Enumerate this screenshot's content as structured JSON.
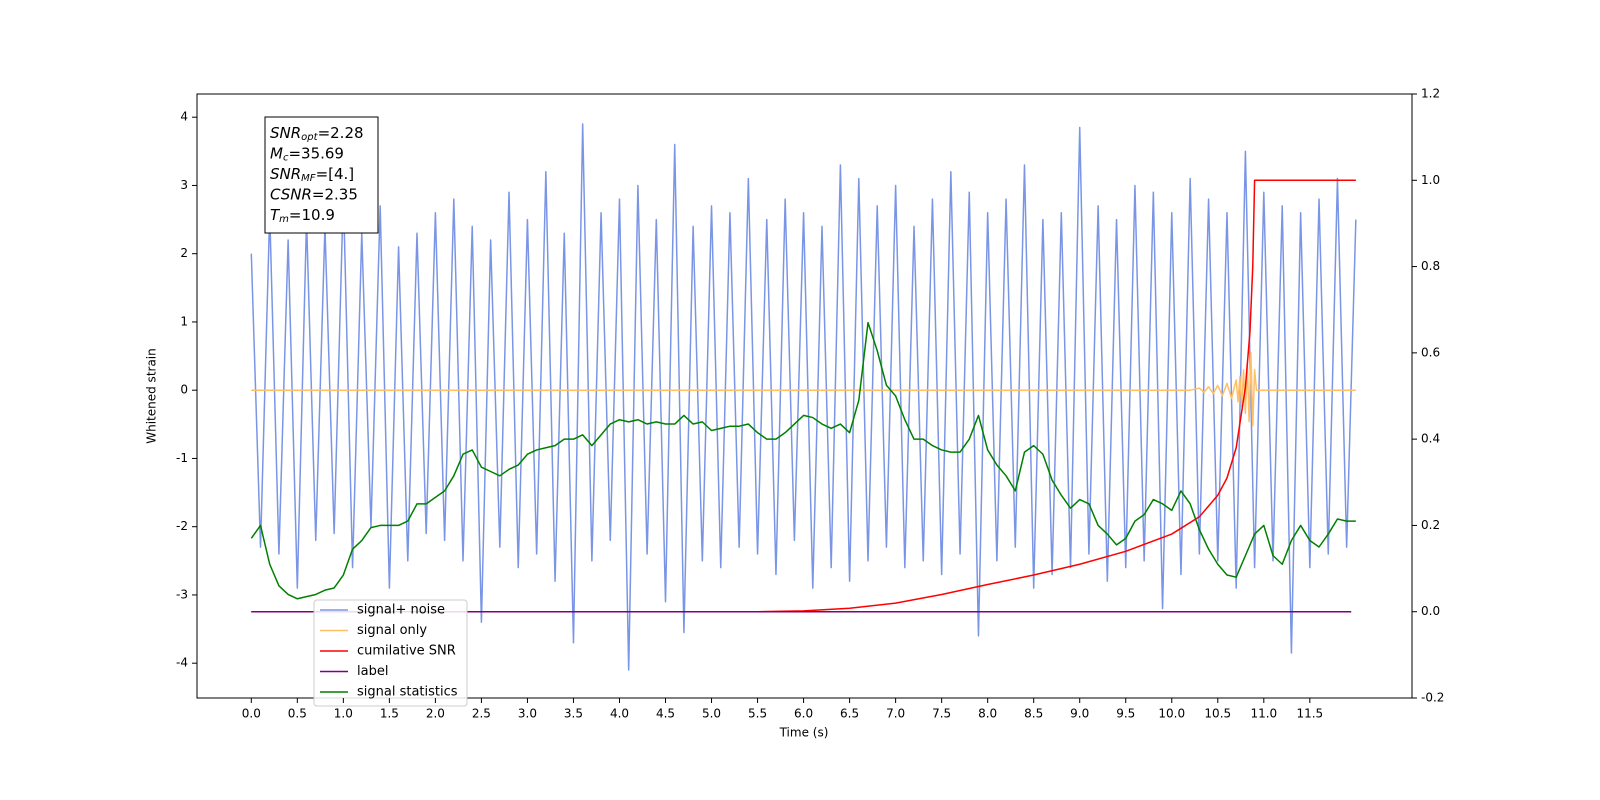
{
  "chart_data": {
    "type": "line",
    "xlabel": "Time (s)",
    "ylabel": "Whitened strain",
    "xlim": [
      -0.59,
      12.61
    ],
    "ylim": [
      -4.51,
      4.34
    ],
    "y2lim": [
      -0.2,
      1.2
    ],
    "xticks": [
      {
        "value": 0,
        "label": "0.0"
      },
      0.5,
      {
        "value": 1,
        "label": "1.0"
      },
      1.5,
      {
        "value": 2,
        "label": "2.0"
      },
      2.5,
      {
        "value": 3,
        "label": "3.0"
      },
      3.5,
      {
        "value": 4,
        "label": "4.0"
      },
      4.5,
      {
        "value": 5,
        "label": "5.0"
      },
      5.5,
      {
        "value": 6,
        "label": "6.0"
      },
      6.5,
      {
        "value": 7,
        "label": "7.0"
      },
      7.5,
      {
        "value": 8,
        "label": "8.0"
      },
      8.5,
      {
        "value": 9,
        "label": "9.0"
      },
      9.5,
      {
        "value": 10,
        "label": "10.0"
      },
      10.5,
      {
        "value": 11,
        "label": "11.0"
      },
      11.5
    ],
    "yticks": [
      -4,
      -3,
      -2,
      -1,
      0,
      1,
      2,
      3,
      4
    ],
    "y2ticks": [
      -0.2,
      {
        "value": 0,
        "label": "0.0"
      },
      0.2,
      0.4,
      0.6,
      0.8,
      {
        "value": 1,
        "label": "1.0"
      },
      1.2
    ],
    "annotations": [
      {
        "symbol": "SNR",
        "subscript": "opt",
        "text": "=2.28"
      },
      {
        "symbol": "M",
        "subscript": "c",
        "text": "=35.69"
      },
      {
        "symbol": "SNR",
        "subscript": "MF",
        "text": "=[4.]"
      },
      {
        "symbol": "CSNR",
        "text": "=2.35"
      },
      {
        "symbol": "T",
        "subscript": "m",
        "text": "=10.9"
      }
    ],
    "x": [
      0,
      0.1,
      0.2,
      0.3,
      0.4,
      0.5,
      0.6,
      0.7,
      0.8,
      0.9,
      1,
      1.1,
      1.2,
      1.3,
      1.4,
      1.5,
      1.6,
      1.7,
      1.8,
      1.9,
      2,
      2.1,
      2.2,
      2.3,
      2.4,
      2.5,
      2.6,
      2.7,
      2.8,
      2.9,
      3,
      3.1,
      3.2,
      3.3,
      3.4,
      3.5,
      3.6,
      3.7,
      3.8,
      3.9,
      4,
      4.1,
      4.2,
      4.3,
      4.4,
      4.5,
      4.6,
      4.7,
      4.8,
      4.9,
      5,
      5.1,
      5.2,
      5.3,
      5.4,
      5.5,
      5.6,
      5.7,
      5.8,
      5.9,
      6,
      6.1,
      6.2,
      6.3,
      6.4,
      6.5,
      6.6,
      6.7,
      6.8,
      6.9,
      7,
      7.1,
      7.2,
      7.3,
      7.4,
      7.5,
      7.6,
      7.7,
      7.8,
      7.9,
      8,
      8.1,
      8.2,
      8.3,
      8.4,
      8.5,
      8.6,
      8.7,
      8.8,
      8.9,
      9,
      9.1,
      9.2,
      9.3,
      9.4,
      9.5,
      9.6,
      9.7,
      9.8,
      9.9,
      10,
      10.1,
      10.2,
      10.3,
      10.4,
      10.5,
      10.6,
      10.7,
      10.8,
      10.9,
      11,
      11.1,
      11.2,
      11.3,
      11.4,
      11.5,
      11.6,
      11.7,
      11.8,
      11.9,
      12
    ],
    "series": [
      {
        "name": "signal+ noise",
        "color": "#7a95e6",
        "values": [
          2.0,
          -2.3,
          2.6,
          -2.4,
          2.2,
          -2.9,
          2.5,
          -2.2,
          2.4,
          -2.1,
          2.9,
          -2.6,
          2.3,
          -2.0,
          2.7,
          -2.9,
          2.1,
          -2.5,
          2.3,
          -2.1,
          2.6,
          -2.2,
          2.8,
          -2.5,
          2.4,
          -3.4,
          2.2,
          -2.3,
          2.9,
          -2.6,
          2.5,
          -2.4,
          3.2,
          -2.8,
          2.3,
          -3.7,
          3.9,
          -2.5,
          2.6,
          -2.2,
          2.8,
          -4.1,
          3.0,
          -2.4,
          2.5,
          -3.1,
          3.6,
          -3.55,
          2.4,
          -2.5,
          2.7,
          -2.6,
          2.6,
          -2.3,
          3.1,
          -2.4,
          2.5,
          -2.7,
          2.8,
          -2.2,
          2.6,
          -2.9,
          2.4,
          -2.6,
          3.3,
          -2.8,
          3.1,
          -2.5,
          2.7,
          -2.3,
          3.0,
          -2.6,
          2.4,
          -2.5,
          2.8,
          -2.7,
          3.2,
          -2.4,
          2.9,
          -3.6,
          2.6,
          -2.5,
          2.8,
          -2.3,
          3.3,
          -2.9,
          2.5,
          -2.7,
          2.6,
          -2.6,
          3.85,
          -2.4,
          2.7,
          -2.8,
          2.5,
          -2.6,
          3.0,
          -2.5,
          2.9,
          -3.2,
          2.6,
          -2.7,
          3.1,
          -2.4,
          2.8,
          -2.5,
          2.6,
          -2.9,
          3.5,
          -2.6,
          2.9,
          -2.5,
          2.7,
          -3.85,
          2.6,
          -2.6,
          2.8,
          -2.4,
          3.1,
          -2.3,
          2.5
        ]
      },
      {
        "name": "signal only",
        "color": "#ffbf66",
        "x": [
          0,
          10.2,
          10.3,
          10.35,
          10.4,
          10.45,
          10.5,
          10.55,
          10.6,
          10.65,
          10.7,
          10.72,
          10.74,
          10.76,
          10.78,
          10.8,
          10.82,
          10.84,
          10.86,
          10.88,
          10.9,
          10.92,
          12.0
        ],
        "values": [
          0,
          0,
          0.03,
          -0.03,
          0.05,
          -0.05,
          0.07,
          -0.08,
          0.1,
          -0.12,
          0.15,
          -0.17,
          0.2,
          -0.24,
          0.3,
          -0.34,
          0.4,
          -0.46,
          0.55,
          -0.52,
          0.3,
          0,
          0
        ]
      },
      {
        "name": "cumilative SNR",
        "color": "#ff0000",
        "axis": "y2",
        "x": [
          0,
          5.5,
          6.0,
          6.5,
          7.0,
          7.5,
          8.0,
          8.5,
          9.0,
          9.5,
          10.0,
          10.3,
          10.5,
          10.6,
          10.7,
          10.8,
          10.85,
          10.88,
          10.9,
          12.0
        ],
        "values": [
          0,
          0,
          0.002,
          0.008,
          0.02,
          0.04,
          0.063,
          0.085,
          0.11,
          0.14,
          0.18,
          0.22,
          0.27,
          0.31,
          0.38,
          0.52,
          0.65,
          0.8,
          1.0,
          1.0
        ]
      },
      {
        "name": "label",
        "color": "#800080",
        "axis": "y2",
        "x": [
          0,
          11.95
        ],
        "values": [
          0,
          0
        ]
      },
      {
        "name": "signal statistics",
        "color": "#008000",
        "axis": "y2",
        "values": [
          0.17,
          0.2,
          0.11,
          0.06,
          0.04,
          0.03,
          0.035,
          0.04,
          0.05,
          0.055,
          0.085,
          0.145,
          0.165,
          0.195,
          0.2,
          0.2,
          0.2,
          0.21,
          0.25,
          0.25,
          0.265,
          0.28,
          0.315,
          0.365,
          0.375,
          0.335,
          0.325,
          0.315,
          0.33,
          0.34,
          0.365,
          0.375,
          0.38,
          0.385,
          0.4,
          0.4,
          0.41,
          0.385,
          0.41,
          0.435,
          0.445,
          0.44,
          0.445,
          0.435,
          0.44,
          0.435,
          0.435,
          0.455,
          0.435,
          0.44,
          0.42,
          0.425,
          0.43,
          0.43,
          0.435,
          0.415,
          0.4,
          0.4,
          0.415,
          0.435,
          0.455,
          0.45,
          0.435,
          0.425,
          0.435,
          0.415,
          0.49,
          0.67,
          0.605,
          0.525,
          0.5,
          0.445,
          0.4,
          0.4,
          0.385,
          0.375,
          0.37,
          0.37,
          0.4,
          0.455,
          0.375,
          0.34,
          0.315,
          0.28,
          0.37,
          0.385,
          0.365,
          0.305,
          0.27,
          0.24,
          0.26,
          0.25,
          0.2,
          0.18,
          0.155,
          0.17,
          0.21,
          0.225,
          0.26,
          0.25,
          0.235,
          0.28,
          0.25,
          0.19,
          0.145,
          0.11,
          0.085,
          0.08,
          0.13,
          0.18,
          0.2,
          0.13,
          0.11,
          0.165,
          0.2,
          0.165,
          0.15,
          0.18,
          0.215,
          0.21,
          0.21
        ]
      }
    ]
  }
}
